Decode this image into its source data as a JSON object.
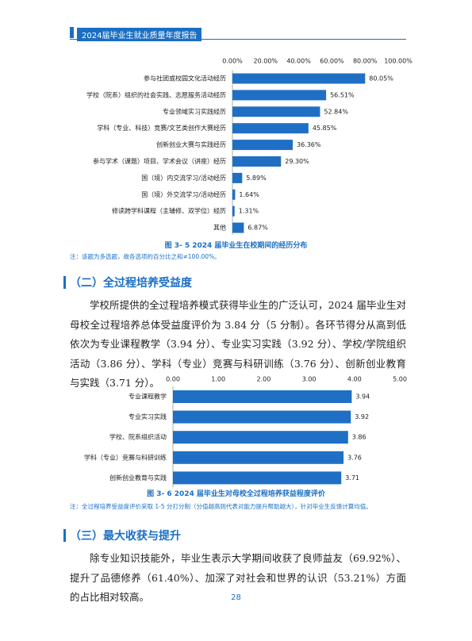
{
  "header": {
    "title": "2024届毕业生就业质量年度报告"
  },
  "chart_data": [
    {
      "type": "bar",
      "orientation": "horizontal",
      "color": "#1f6fc5",
      "grid": false,
      "categories": [
        "参与社团或校园文化活动经历",
        "学校（院系）组织的社会实践、志愿服务活动经历",
        "专业领域实习实践经历",
        "学科（专业、科技）竞赛/文艺类创作大赛经历",
        "创新创业大赛与实践经历",
        "参与学术（课题）项目、学术会议（讲座）经历",
        "国（境）内交流学习/活动经历",
        "国（境）外交流学习/活动经历",
        "修读跨学科课程（主辅修、双学位）经历",
        "其他"
      ],
      "values": [
        80.05,
        56.51,
        52.84,
        45.85,
        36.36,
        29.3,
        5.89,
        1.64,
        1.31,
        6.87
      ],
      "value_labels": [
        "80.05%",
        "56.51%",
        "52.84%",
        "45.85%",
        "36.36%",
        "29.30%",
        "5.89%",
        "1.64%",
        "1.31%",
        "6.87%"
      ],
      "xlim": [
        0,
        100
      ],
      "xticks": [
        {
          "value": 0,
          "label": "0.00%"
        },
        {
          "value": 20,
          "label": "20.00%"
        },
        {
          "value": 40,
          "label": "40.00%"
        },
        {
          "value": 60,
          "label": "60.00%"
        },
        {
          "value": 80,
          "label": "80.00%"
        },
        {
          "value": 100,
          "label": "100.00%"
        }
      ],
      "caption": "图 3- 5  2024 届毕业生在校期间的经历分布",
      "note": "注：该题为多选题，故各选项的百分比之和≠100.00%。"
    },
    {
      "type": "bar",
      "orientation": "horizontal",
      "color": "#1f6fc5",
      "grid": false,
      "categories": [
        "专业课程教学",
        "专业实习实践",
        "学校、院系组织活动",
        "学科（专业）竞赛与科研训练",
        "创新创业教育与实践"
      ],
      "values": [
        3.94,
        3.92,
        3.86,
        3.76,
        3.71
      ],
      "xlim": [
        0,
        5
      ],
      "xticks": [
        {
          "value": 0,
          "label": "0.00"
        },
        {
          "value": 1,
          "label": "1.00"
        },
        {
          "value": 2,
          "label": "2.00"
        },
        {
          "value": 3,
          "label": "3.00"
        },
        {
          "value": 4,
          "label": "4.00"
        },
        {
          "value": 5,
          "label": "5.00"
        }
      ],
      "caption": "图 3- 6  2024 届毕业生对母校全过程培养获益程度评价",
      "note": "注：全过程培养受益度评价采取 1-5 分打分制（分值越高则代表对能力提升帮助越大），针对毕业生反馈计算均值。"
    }
  ],
  "sections": [
    {
      "heading": "（二）全过程培养受益度",
      "paragraph": "学校所提供的全过程培养模式获得毕业生的广泛认可，2024 届毕业生对母校全过程培养总体受益度评价为 3.84 分（5 分制）。各环节得分从高到低依次为专业课程教学（3.94 分）、专业实习实践（3.92 分）、学校/学院组织活动（3.86 分）、学科（专业）竞赛与科研训练（3.76 分）、创新创业教育与实践（3.71 分）。"
    },
    {
      "heading": "（三）最大收获与提升",
      "paragraph": "除专业知识技能外，毕业生表示大学期间收获了良师益友（69.92%）、提升了品德修养（61.40%）、加深了对社会和世界的认识（53.21%）方面的占比相对较高。"
    }
  ],
  "footer": {
    "page_number": "28"
  }
}
